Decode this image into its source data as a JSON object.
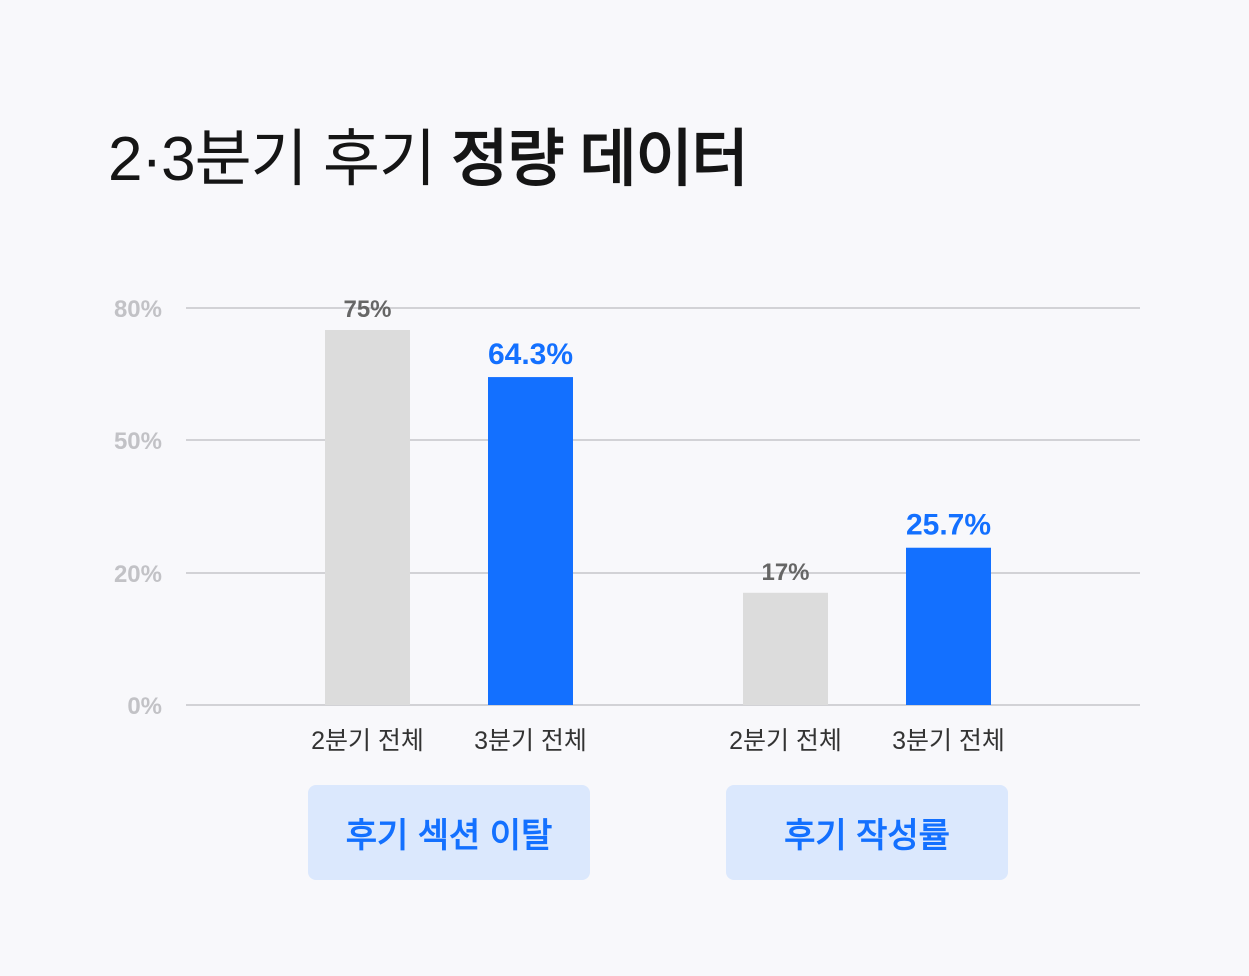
{
  "title_parts": {
    "normal": "2·3분기 후기",
    "bold": "정량 데이터"
  },
  "chart_data": {
    "type": "bar",
    "title": "2·3분기 후기 정량 데이터",
    "yticks": [
      "0%",
      "20%",
      "50%",
      "80%"
    ],
    "ylim": [
      0,
      80
    ],
    "grid": true,
    "groups": [
      {
        "name": "후기 섹션 이탈",
        "bars": [
          {
            "category": "2분기 전체",
            "value": 75,
            "label": "75%",
            "color": "#dcdcdc"
          },
          {
            "category": "3분기 전체",
            "value": 64.3,
            "label": "64.3%",
            "color": "#1370ff"
          }
        ]
      },
      {
        "name": "후기 작성률",
        "bars": [
          {
            "category": "2분기 전체",
            "value": 17,
            "label": "17%",
            "color": "#dcdcdc"
          },
          {
            "category": "3분기 전체",
            "value": 25.7,
            "label": "25.7%",
            "color": "#1370ff"
          }
        ]
      }
    ]
  }
}
